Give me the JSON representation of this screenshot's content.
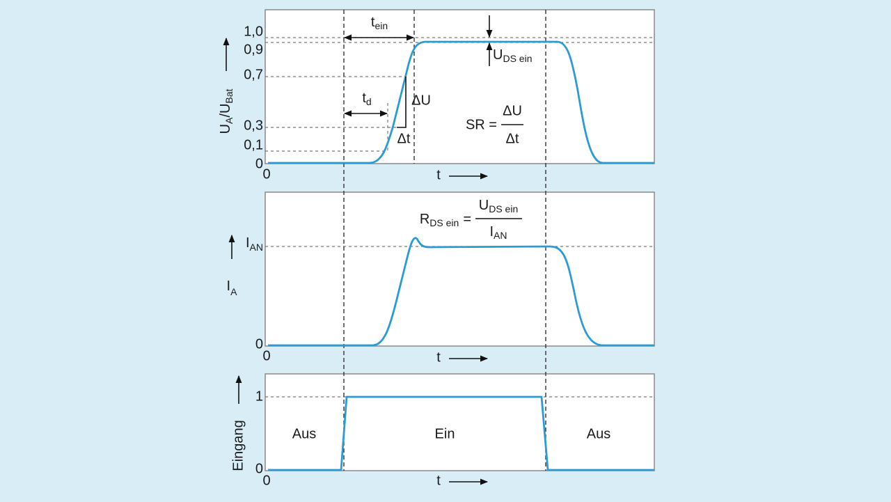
{
  "panels": [
    {
      "y_label": {
        "base": "U",
        "sub1": "A",
        "mid": "/U",
        "sub2": "Bat"
      },
      "ticks": [
        "1,0",
        "0,9",
        "0,7",
        "0,3",
        "0,1",
        "0"
      ],
      "x_origin": "0",
      "x_label": "t",
      "annotations": {
        "t_ein": {
          "base": "t",
          "sub": "ein"
        },
        "t_d": {
          "base": "t",
          "sub": "d"
        },
        "delta_u": "ΔU",
        "delta_t": "Δt",
        "u_ds_ein": {
          "base": "U",
          "sub": "DS ein"
        },
        "slew_rate": {
          "lhs": "SR =",
          "numerator": "ΔU",
          "denominator": "Δt"
        }
      }
    },
    {
      "y_label": {
        "base": "I",
        "sub": "A"
      },
      "ticks": [
        {
          "base": "I",
          "sub": "AN"
        },
        "0"
      ],
      "x_origin": "0",
      "x_label": "t",
      "annotations": {
        "r_ds_ein": {
          "base": "R",
          "sub": "DS ein",
          "eq": "=",
          "numerator": {
            "base": "U",
            "sub": "DS ein"
          },
          "denominator": {
            "base": "I",
            "sub": "AN"
          }
        }
      }
    },
    {
      "y_label": "Eingang",
      "ticks": [
        "1",
        "0"
      ],
      "x_origin": "0",
      "x_label": "t",
      "states": [
        "Aus",
        "Ein",
        "Aus"
      ]
    }
  ]
}
